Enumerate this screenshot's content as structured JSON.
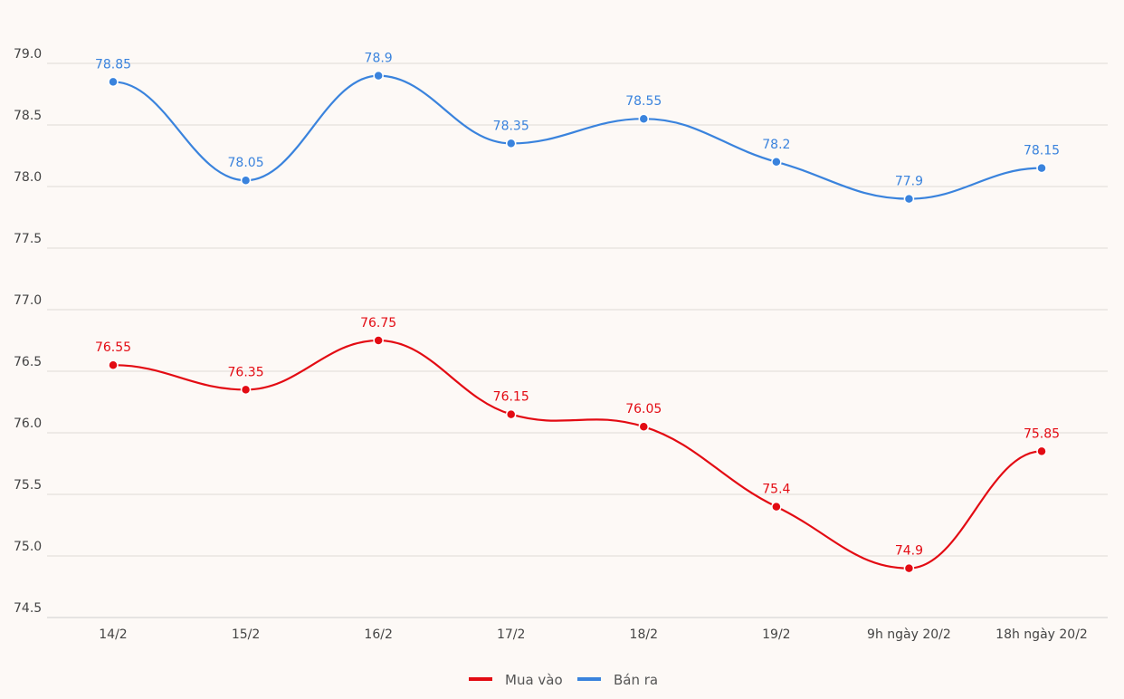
{
  "chart_data": {
    "type": "line",
    "title": "",
    "xlabel": "",
    "ylabel": "",
    "categories": [
      "14/2",
      "15/2",
      "16/2",
      "17/2",
      "18/2",
      "19/2",
      "9h ngày 20/2",
      "18h ngày 20/2"
    ],
    "ylim": [
      74.5,
      79.0
    ],
    "yticks": [
      "74.5",
      "75.0",
      "75.5",
      "76.0",
      "76.5",
      "77.0",
      "77.5",
      "78.0",
      "78.5",
      "79.0"
    ],
    "grid": true,
    "legend_position": "bottom-center",
    "series": [
      {
        "name": "Mua vào",
        "color": "#e30b13",
        "values": [
          76.55,
          76.35,
          76.75,
          76.15,
          76.05,
          75.4,
          74.9,
          75.85
        ]
      },
      {
        "name": "Bán ra",
        "color": "#3a83dd",
        "values": [
          78.85,
          78.05,
          78.9,
          78.35,
          78.55,
          78.2,
          77.9,
          78.15
        ]
      }
    ]
  }
}
